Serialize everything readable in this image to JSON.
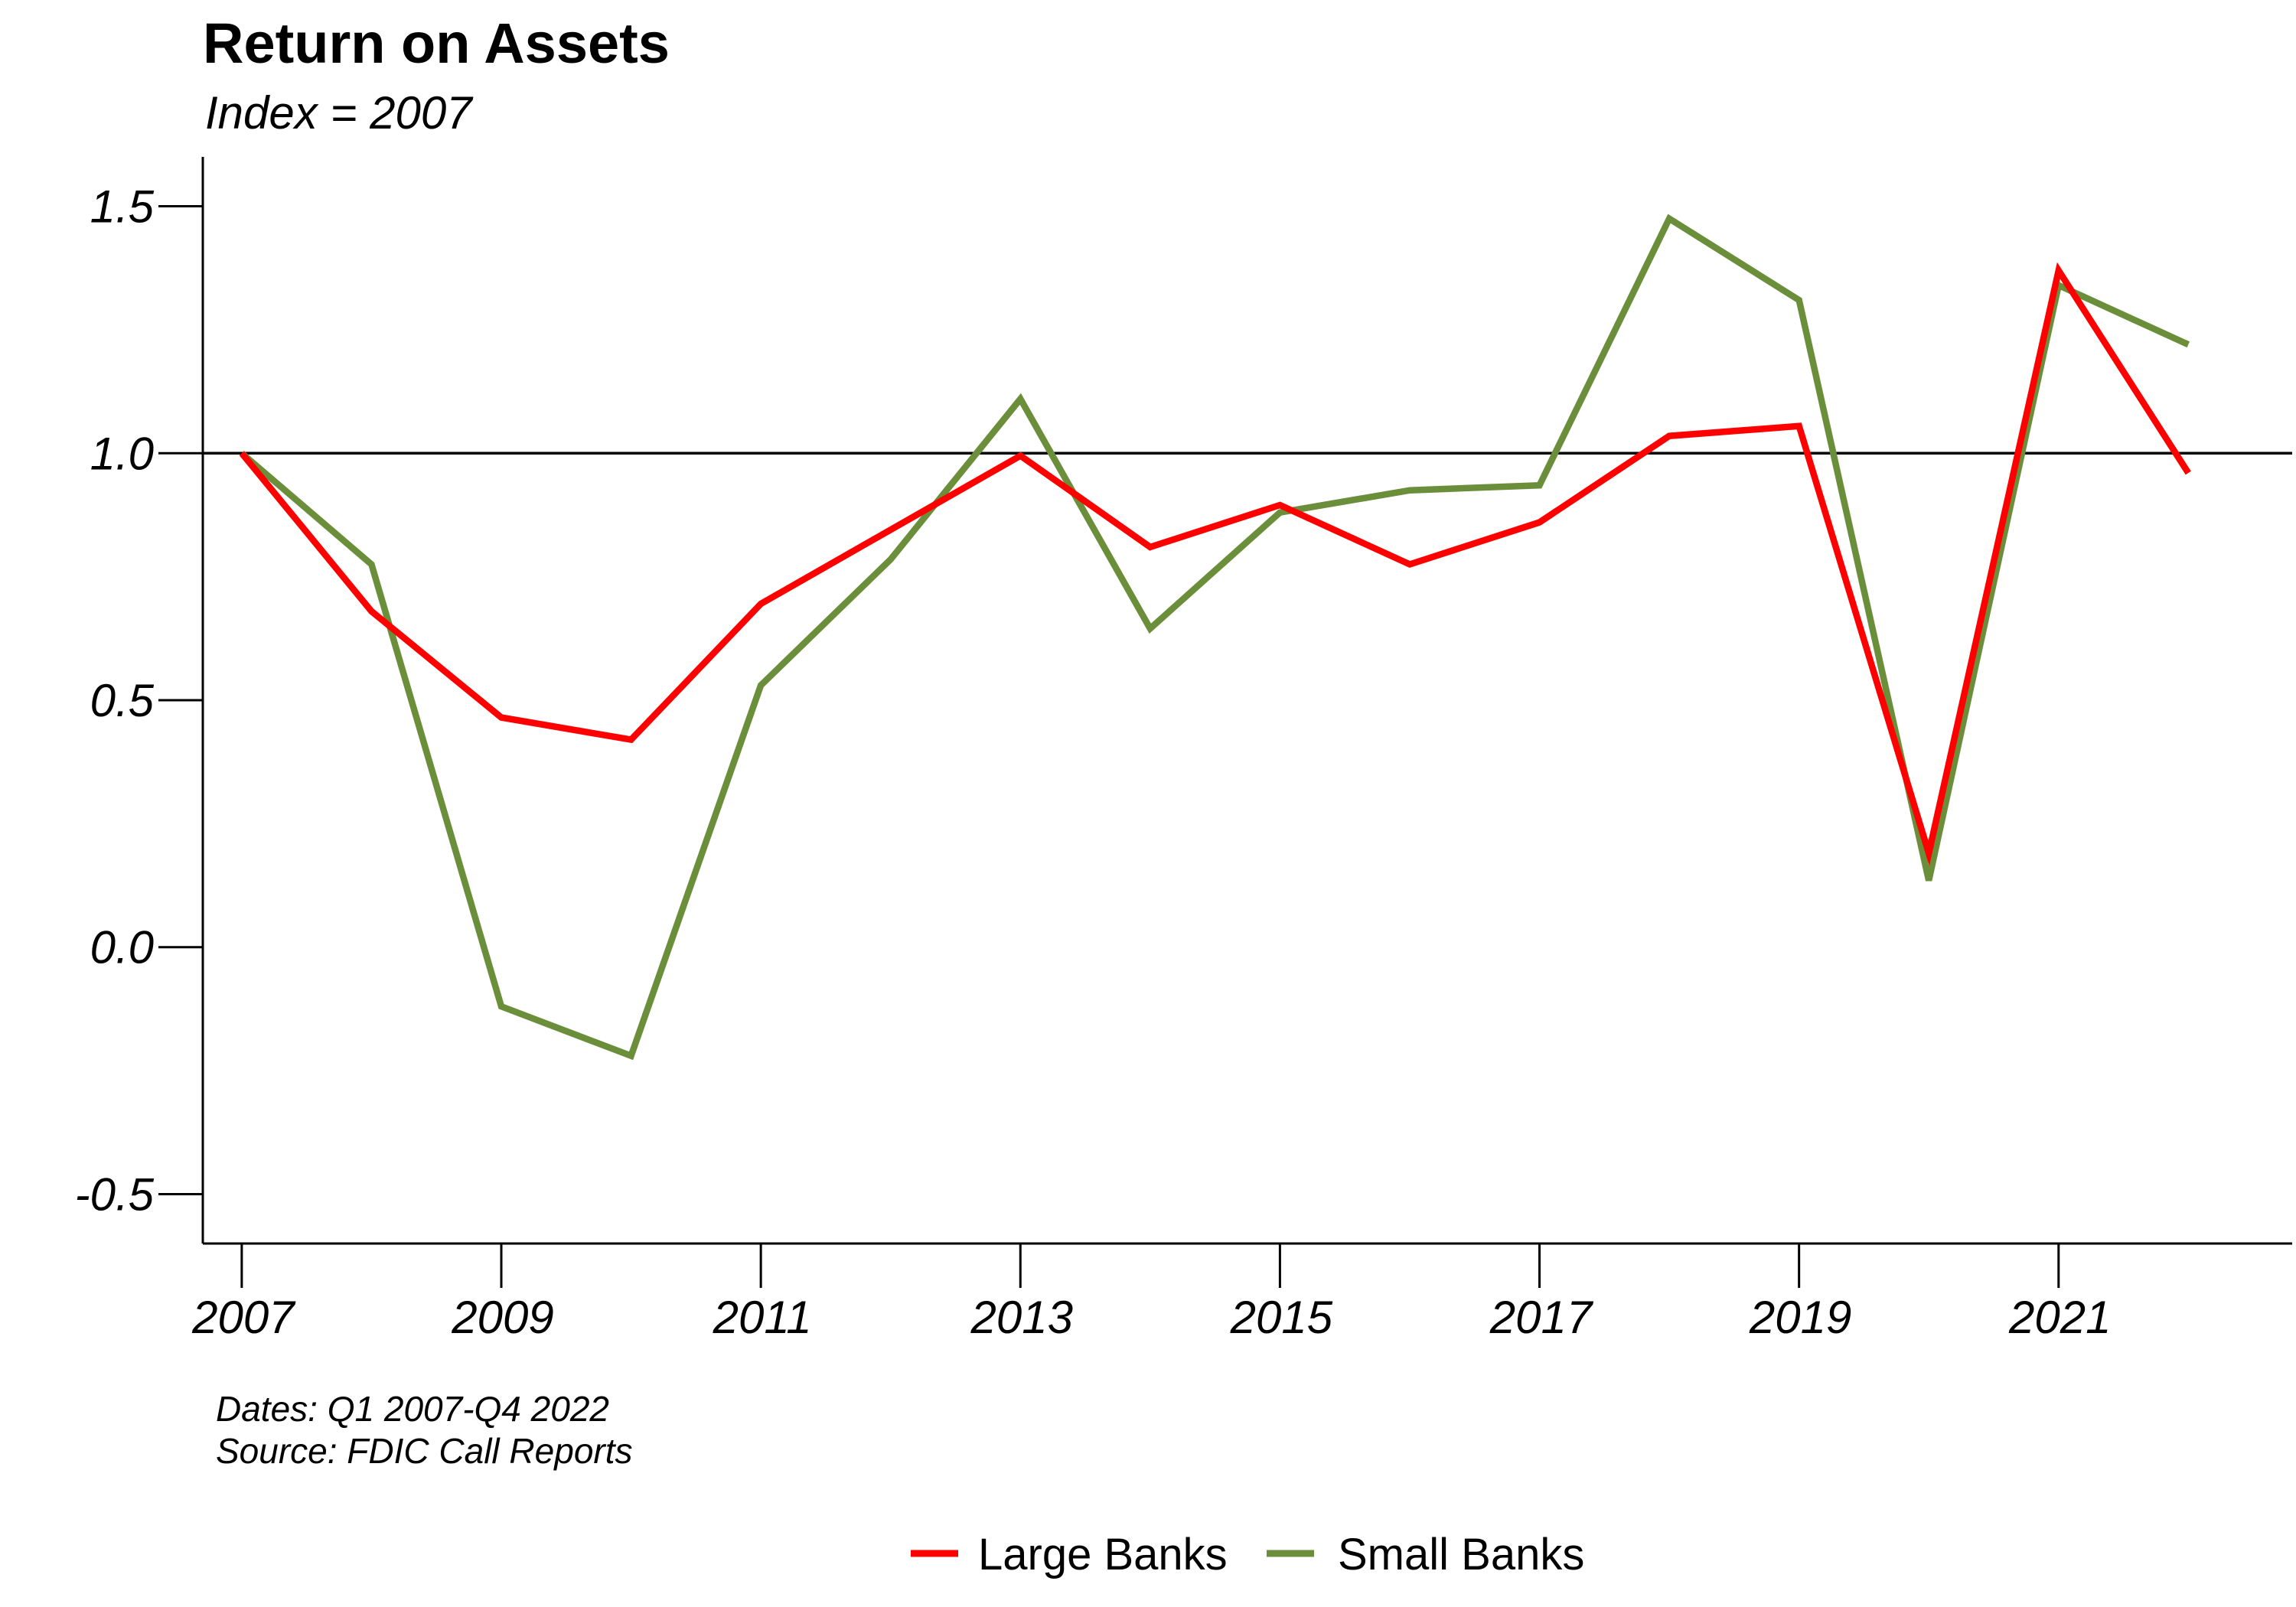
{
  "chart_data": {
    "type": "line",
    "title": "Return on Assets",
    "subtitle": "Index = 2007",
    "xlabel": "",
    "ylabel": "",
    "x": [
      2007,
      2008,
      2009,
      2010,
      2011,
      2012,
      2013,
      2014,
      2015,
      2016,
      2017,
      2018,
      2019,
      2020,
      2021,
      2022
    ],
    "xlim": [
      2006.7,
      2022.8
    ],
    "ylim": [
      -0.6,
      1.6
    ],
    "x_ticks": [
      2007,
      2009,
      2011,
      2013,
      2015,
      2017,
      2019,
      2021
    ],
    "x_tick_labels": [
      "2007",
      "2009",
      "2011",
      "2013",
      "2015",
      "2017",
      "2019",
      "2021"
    ],
    "y_ticks": [
      -0.5,
      0.0,
      0.5,
      1.0,
      1.5
    ],
    "y_tick_labels": [
      "-0.5",
      "0.0",
      "0.5",
      "1.0",
      "1.5"
    ],
    "reference_line": 1.0,
    "grid": false,
    "legend_position": "bottom-center",
    "series": [
      {
        "name": "Large Banks",
        "color": "#ff0000",
        "values": [
          1.0,
          0.68,
          0.465,
          0.42,
          0.695,
          0.845,
          0.995,
          0.81,
          0.895,
          0.775,
          0.86,
          1.035,
          1.055,
          0.19,
          1.37,
          0.96
        ]
      },
      {
        "name": "Small Banks",
        "color": "#6b8e3a",
        "values": [
          1.0,
          0.775,
          -0.12,
          -0.22,
          0.53,
          0.785,
          1.11,
          0.645,
          0.88,
          0.925,
          0.935,
          1.475,
          1.31,
          0.135,
          1.34,
          1.22
        ]
      }
    ],
    "caption_lines": [
      "Dates: Q1 2007-Q4 2022",
      "Source: FDIC Call Reports"
    ]
  }
}
